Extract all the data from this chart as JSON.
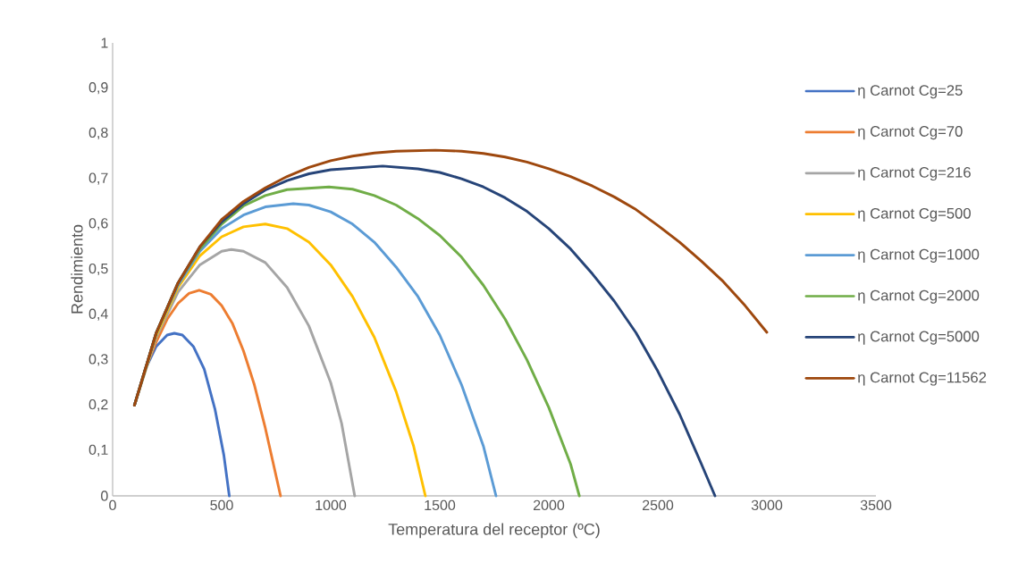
{
  "chart_data": {
    "type": "line",
    "xlabel": "Temperatura del receptor (ºC)",
    "ylabel": "Rendimiento",
    "xlim": [
      0,
      3500
    ],
    "xticks": [
      0,
      500,
      1000,
      1500,
      2000,
      2500,
      3000,
      3500
    ],
    "ylim": [
      0,
      1
    ],
    "yticks": [
      0,
      {
        "value": 0.1,
        "label": "0,1"
      },
      {
        "value": 0.2,
        "label": "0,2"
      },
      {
        "value": 0.3,
        "label": "0,3"
      },
      {
        "value": 0.4,
        "label": "0,4"
      },
      {
        "value": 0.5,
        "label": "0,5"
      },
      {
        "value": 0.6,
        "label": "0,6"
      },
      {
        "value": 0.7,
        "label": "0,7"
      },
      {
        "value": 0.8,
        "label": "0,8"
      },
      {
        "value": 0.9,
        "label": "0,9"
      },
      1
    ],
    "grid": false,
    "legend": "right",
    "marker": "none",
    "line_style": "solid",
    "series": [
      {
        "name": "η Carnot Cg=25",
        "color": "#4472c4",
        "x": [
          100,
          150,
          200,
          250,
          283,
          320,
          370,
          420,
          470,
          510,
          535
        ],
        "values": [
          0.2,
          0.28,
          0.33,
          0.355,
          0.359,
          0.355,
          0.33,
          0.28,
          0.19,
          0.09,
          0
        ]
      },
      {
        "name": "η Carnot Cg=70",
        "color": "#ed7d31",
        "x": [
          100,
          150,
          200,
          250,
          300,
          350,
          397,
          450,
          500,
          550,
          600,
          650,
          700,
          770
        ],
        "values": [
          0.2,
          0.28,
          0.34,
          0.39,
          0.425,
          0.447,
          0.454,
          0.445,
          0.42,
          0.38,
          0.32,
          0.245,
          0.15,
          0
        ]
      },
      {
        "name": "η Carnot Cg=216",
        "color": "#a5a5a5",
        "x": [
          100,
          200,
          300,
          400,
          500,
          545,
          600,
          700,
          800,
          900,
          1000,
          1050,
          1110
        ],
        "values": [
          0.2,
          0.35,
          0.45,
          0.51,
          0.54,
          0.544,
          0.54,
          0.515,
          0.46,
          0.375,
          0.25,
          0.16,
          0
        ]
      },
      {
        "name": "η Carnot Cg=500",
        "color": "#ffc000",
        "x": [
          100,
          200,
          300,
          400,
          500,
          600,
          700,
          800,
          900,
          1000,
          1100,
          1200,
          1300,
          1380,
          1434
        ],
        "values": [
          0.2,
          0.355,
          0.46,
          0.53,
          0.572,
          0.594,
          0.6,
          0.59,
          0.56,
          0.51,
          0.44,
          0.35,
          0.23,
          0.11,
          0
        ]
      },
      {
        "name": "η Carnot Cg=1000",
        "color": "#5b9bd5",
        "x": [
          100,
          200,
          300,
          400,
          500,
          600,
          700,
          828,
          900,
          1000,
          1100,
          1200,
          1300,
          1400,
          1500,
          1600,
          1700,
          1758
        ],
        "values": [
          0.2,
          0.36,
          0.465,
          0.54,
          0.59,
          0.62,
          0.638,
          0.645,
          0.642,
          0.627,
          0.6,
          0.56,
          0.505,
          0.44,
          0.355,
          0.245,
          0.11,
          0
        ]
      },
      {
        "name": "η Carnot Cg=2000",
        "color": "#70ad47",
        "x": [
          100,
          200,
          300,
          400,
          500,
          600,
          700,
          800,
          992,
          1100,
          1200,
          1300,
          1400,
          1500,
          1600,
          1700,
          1800,
          1900,
          2000,
          2100,
          2140
        ],
        "values": [
          0.2,
          0.36,
          0.47,
          0.545,
          0.6,
          0.64,
          0.663,
          0.676,
          0.682,
          0.677,
          0.663,
          0.642,
          0.612,
          0.575,
          0.527,
          0.465,
          0.39,
          0.3,
          0.195,
          0.07,
          0
        ]
      },
      {
        "name": "η Carnot Cg=5000",
        "color": "#264478",
        "x": [
          100,
          200,
          300,
          400,
          500,
          600,
          700,
          800,
          900,
          1000,
          1238,
          1400,
          1500,
          1600,
          1700,
          1800,
          1900,
          2000,
          2100,
          2200,
          2300,
          2400,
          2500,
          2600,
          2700,
          2762
        ],
        "values": [
          0.2,
          0.36,
          0.47,
          0.55,
          0.605,
          0.645,
          0.675,
          0.696,
          0.711,
          0.72,
          0.728,
          0.722,
          0.714,
          0.7,
          0.682,
          0.658,
          0.628,
          0.59,
          0.545,
          0.49,
          0.43,
          0.36,
          0.275,
          0.18,
          0.07,
          0
        ]
      },
      {
        "name": "η Carnot Cg=11562",
        "color": "#9e480e",
        "x": [
          100,
          200,
          300,
          400,
          500,
          600,
          700,
          800,
          900,
          1000,
          1100,
          1200,
          1300,
          1480,
          1600,
          1700,
          1800,
          1900,
          2000,
          2100,
          2200,
          2300,
          2400,
          2500,
          2600,
          2700,
          2800,
          2900,
          3000
        ],
        "values": [
          0.2,
          0.36,
          0.47,
          0.55,
          0.61,
          0.65,
          0.68,
          0.705,
          0.725,
          0.74,
          0.75,
          0.757,
          0.761,
          0.763,
          0.761,
          0.756,
          0.748,
          0.737,
          0.722,
          0.705,
          0.684,
          0.66,
          0.632,
          0.597,
          0.56,
          0.518,
          0.473,
          0.42,
          0.361
        ]
      }
    ]
  }
}
